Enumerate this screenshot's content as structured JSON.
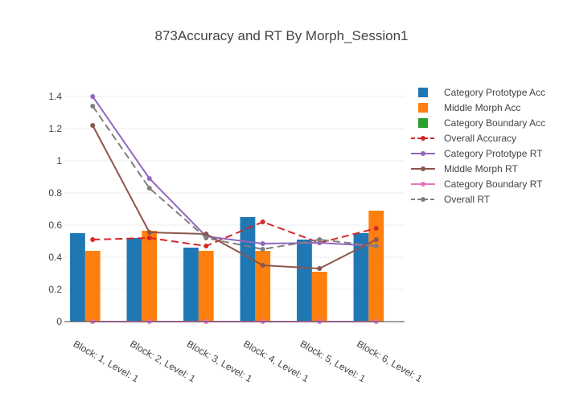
{
  "chart_data": {
    "type": "bar",
    "title": "873Accuracy and RT By Morph_Session1",
    "xlabel": "",
    "ylabel": "",
    "ylim": [
      0,
      1.5
    ],
    "yticks": [
      0,
      0.2,
      0.4,
      0.6,
      0.8,
      1,
      1.2,
      1.4
    ],
    "ytick_labels": [
      "0",
      "0.2",
      "0.4",
      "0.6",
      "0.8",
      "1",
      "1.2",
      "1.4"
    ],
    "grid": true,
    "legend_position": "right",
    "categories": [
      "Block: 1, Level: 1",
      "Block: 2, Level: 1",
      "Block: 3, Level: 1",
      "Block: 4, Level: 1",
      "Block: 5, Level: 1",
      "Block: 6, Level: 1"
    ],
    "series": [
      {
        "name": "Category Prototype Acc",
        "kind": "bar",
        "color": "#1f77b4",
        "values": [
          0.55,
          0.52,
          0.46,
          0.65,
          0.51,
          0.55
        ]
      },
      {
        "name": "Middle Morph Acc",
        "kind": "bar",
        "color": "#ff7f0e",
        "values": [
          0.44,
          0.565,
          0.44,
          0.44,
          0.31,
          0.69
        ]
      },
      {
        "name": "Category Boundary Acc",
        "kind": "bar",
        "color": "#2ca02c",
        "values": [
          0,
          0,
          0,
          0,
          0,
          0
        ]
      },
      {
        "name": "Overall Accuracy",
        "kind": "line",
        "dash": "dash",
        "color": "#d62728",
        "values": [
          0.51,
          0.52,
          0.47,
          0.62,
          0.49,
          0.58
        ]
      },
      {
        "name": "Category Prototype RT",
        "kind": "line",
        "dash": "solid",
        "color": "#9467bd",
        "values": [
          1.4,
          0.89,
          0.53,
          0.485,
          0.49,
          0.47
        ]
      },
      {
        "name": "Middle Morph RT",
        "kind": "line",
        "dash": "solid",
        "color": "#8c564b",
        "values": [
          1.22,
          0.555,
          0.545,
          0.35,
          0.33,
          0.51
        ]
      },
      {
        "name": "Category Boundary RT",
        "kind": "line",
        "dash": "solid",
        "color": "#e377c2",
        "values": [
          0,
          0,
          0,
          0,
          0,
          0
        ]
      },
      {
        "name": "Overall RT",
        "kind": "line",
        "dash": "dash",
        "color": "#7f7f7f",
        "values": [
          1.34,
          0.83,
          0.52,
          0.45,
          0.51,
          0.47
        ]
      }
    ]
  }
}
